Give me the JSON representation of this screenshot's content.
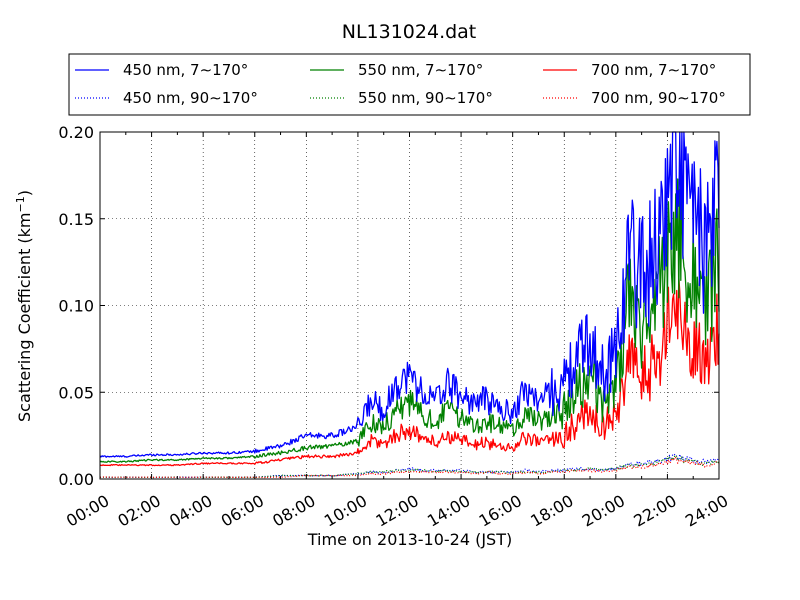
{
  "chart_data": {
    "type": "line",
    "title": "NL131024.dat",
    "xlabel": "Time on 2013-10-24 (JST)",
    "ylabel": "Scattering Coefficient (km",
    "ylabel_sup": "−1",
    "ylabel_tail": ")",
    "xlim": [
      "00:00",
      "24:00"
    ],
    "ylim": [
      0.0,
      0.2
    ],
    "grid": true,
    "legend_position": "top",
    "x_ticks": [
      "00:00",
      "02:00",
      "04:00",
      "06:00",
      "08:00",
      "10:00",
      "12:00",
      "14:00",
      "16:00",
      "18:00",
      "20:00",
      "22:00",
      "24:00"
    ],
    "y_ticks": [
      "0.00",
      "0.05",
      "0.10",
      "0.15",
      "0.20"
    ],
    "x_hours": [
      0,
      1,
      2,
      3,
      4,
      5,
      6,
      7,
      8,
      9,
      10,
      10.5,
      11,
      11.5,
      12,
      12.5,
      13,
      13.5,
      14,
      14.5,
      15,
      15.5,
      16,
      16.5,
      17,
      17.5,
      18,
      18.5,
      19,
      19.5,
      20,
      20.5,
      21,
      21.5,
      22,
      22.3,
      22.6,
      23,
      23.5,
      24
    ],
    "series": [
      {
        "name": "450 nm, 7∼170°",
        "color": "#0000ff",
        "style": "solid",
        "values": [
          0.013,
          0.013,
          0.014,
          0.014,
          0.015,
          0.015,
          0.016,
          0.019,
          0.025,
          0.025,
          0.03,
          0.045,
          0.04,
          0.055,
          0.06,
          0.05,
          0.045,
          0.055,
          0.048,
          0.044,
          0.046,
          0.04,
          0.038,
          0.052,
          0.045,
          0.05,
          0.055,
          0.07,
          0.08,
          0.06,
          0.075,
          0.13,
          0.12,
          0.13,
          0.165,
          0.19,
          0.175,
          0.15,
          0.13,
          0.16
        ]
      },
      {
        "name": "550 nm, 7∼170°",
        "color": "#008000",
        "style": "solid",
        "values": [
          0.01,
          0.01,
          0.011,
          0.011,
          0.012,
          0.012,
          0.013,
          0.015,
          0.018,
          0.019,
          0.022,
          0.033,
          0.03,
          0.04,
          0.044,
          0.037,
          0.033,
          0.04,
          0.035,
          0.032,
          0.033,
          0.03,
          0.028,
          0.038,
          0.033,
          0.036,
          0.04,
          0.05,
          0.06,
          0.045,
          0.055,
          0.1,
          0.09,
          0.1,
          0.13,
          0.15,
          0.135,
          0.115,
          0.1,
          0.125
        ]
      },
      {
        "name": "700 nm, 7∼170°",
        "color": "#ff0000",
        "style": "solid",
        "values": [
          0.008,
          0.008,
          0.008,
          0.008,
          0.009,
          0.009,
          0.009,
          0.011,
          0.013,
          0.013,
          0.015,
          0.022,
          0.02,
          0.026,
          0.028,
          0.024,
          0.021,
          0.025,
          0.022,
          0.02,
          0.021,
          0.019,
          0.018,
          0.024,
          0.021,
          0.023,
          0.025,
          0.033,
          0.04,
          0.03,
          0.037,
          0.065,
          0.06,
          0.065,
          0.085,
          0.1,
          0.09,
          0.08,
          0.07,
          0.085
        ]
      },
      {
        "name": "450 nm, 90∼170°",
        "color": "#0000ff",
        "style": "dotted",
        "values": [
          0.001,
          0.001,
          0.001,
          0.001,
          0.001,
          0.001,
          0.001,
          0.002,
          0.002,
          0.002,
          0.003,
          0.004,
          0.004,
          0.005,
          0.006,
          0.005,
          0.005,
          0.005,
          0.005,
          0.004,
          0.004,
          0.004,
          0.004,
          0.005,
          0.004,
          0.005,
          0.005,
          0.006,
          0.006,
          0.005,
          0.006,
          0.009,
          0.009,
          0.01,
          0.012,
          0.013,
          0.012,
          0.011,
          0.01,
          0.011
        ]
      },
      {
        "name": "550 nm, 90∼170°",
        "color": "#008000",
        "style": "dotted",
        "values": [
          0.001,
          0.001,
          0.001,
          0.001,
          0.001,
          0.001,
          0.001,
          0.002,
          0.002,
          0.002,
          0.003,
          0.004,
          0.004,
          0.005,
          0.005,
          0.005,
          0.004,
          0.005,
          0.004,
          0.004,
          0.004,
          0.004,
          0.004,
          0.004,
          0.004,
          0.004,
          0.005,
          0.005,
          0.006,
          0.005,
          0.006,
          0.008,
          0.008,
          0.009,
          0.011,
          0.012,
          0.011,
          0.01,
          0.009,
          0.01
        ]
      },
      {
        "name": "700 nm, 90∼170°",
        "color": "#ff0000",
        "style": "dotted",
        "values": [
          0.001,
          0.001,
          0.001,
          0.001,
          0.001,
          0.001,
          0.001,
          0.001,
          0.002,
          0.002,
          0.002,
          0.003,
          0.003,
          0.004,
          0.004,
          0.004,
          0.004,
          0.004,
          0.004,
          0.003,
          0.004,
          0.003,
          0.003,
          0.004,
          0.003,
          0.004,
          0.004,
          0.005,
          0.005,
          0.004,
          0.005,
          0.007,
          0.007,
          0.008,
          0.01,
          0.011,
          0.01,
          0.009,
          0.008,
          0.009
        ]
      }
    ]
  }
}
